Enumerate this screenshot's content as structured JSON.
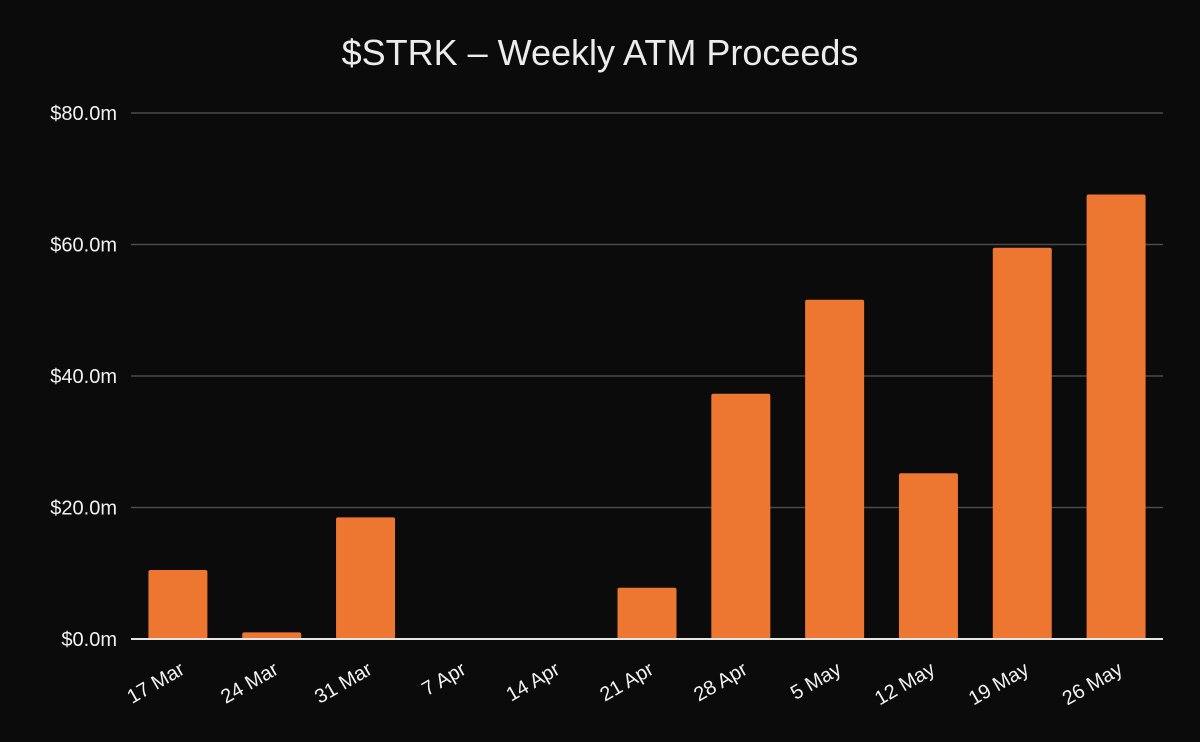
{
  "chart_data": {
    "type": "bar",
    "title": "$STRK – Weekly ATM Proceeds",
    "xlabel": "",
    "ylabel": "",
    "categories": [
      "17 Mar",
      "24 Mar",
      "31 Mar",
      "7 Apr",
      "14 Apr",
      "21 Apr",
      "28 Apr",
      "5 May",
      "12 May",
      "19 May",
      "26 May"
    ],
    "values": [
      10.5,
      1.0,
      18.5,
      0,
      0,
      7.8,
      37.3,
      51.6,
      25.2,
      59.5,
      67.6
    ],
    "ylim": [
      0,
      80
    ],
    "y_ticks": [
      0,
      20,
      40,
      60,
      80
    ],
    "y_tick_labels": [
      "$0.0m",
      "$20.0m",
      "$40.0m",
      "$60.0m",
      "$80.0m"
    ],
    "grid": true,
    "legend": "none",
    "colors": {
      "background": "#0b0b0b",
      "bar": "#ed7731",
      "grid": "#4a4a4a",
      "axis": "#e6e6e6",
      "text": "#f2f2f2"
    }
  }
}
